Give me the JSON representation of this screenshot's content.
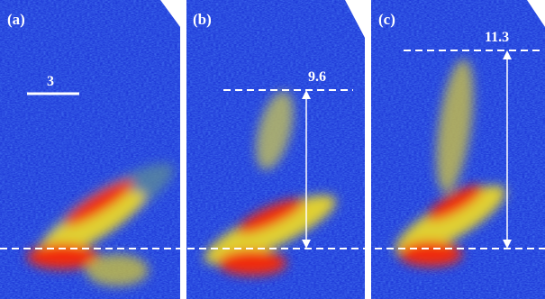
{
  "panels": [
    {
      "label": "(a)",
      "annotation": "3"
    },
    {
      "label": "(b)",
      "annotation": "9.6"
    },
    {
      "label": "(c)",
      "annotation": "11.3"
    }
  ]
}
